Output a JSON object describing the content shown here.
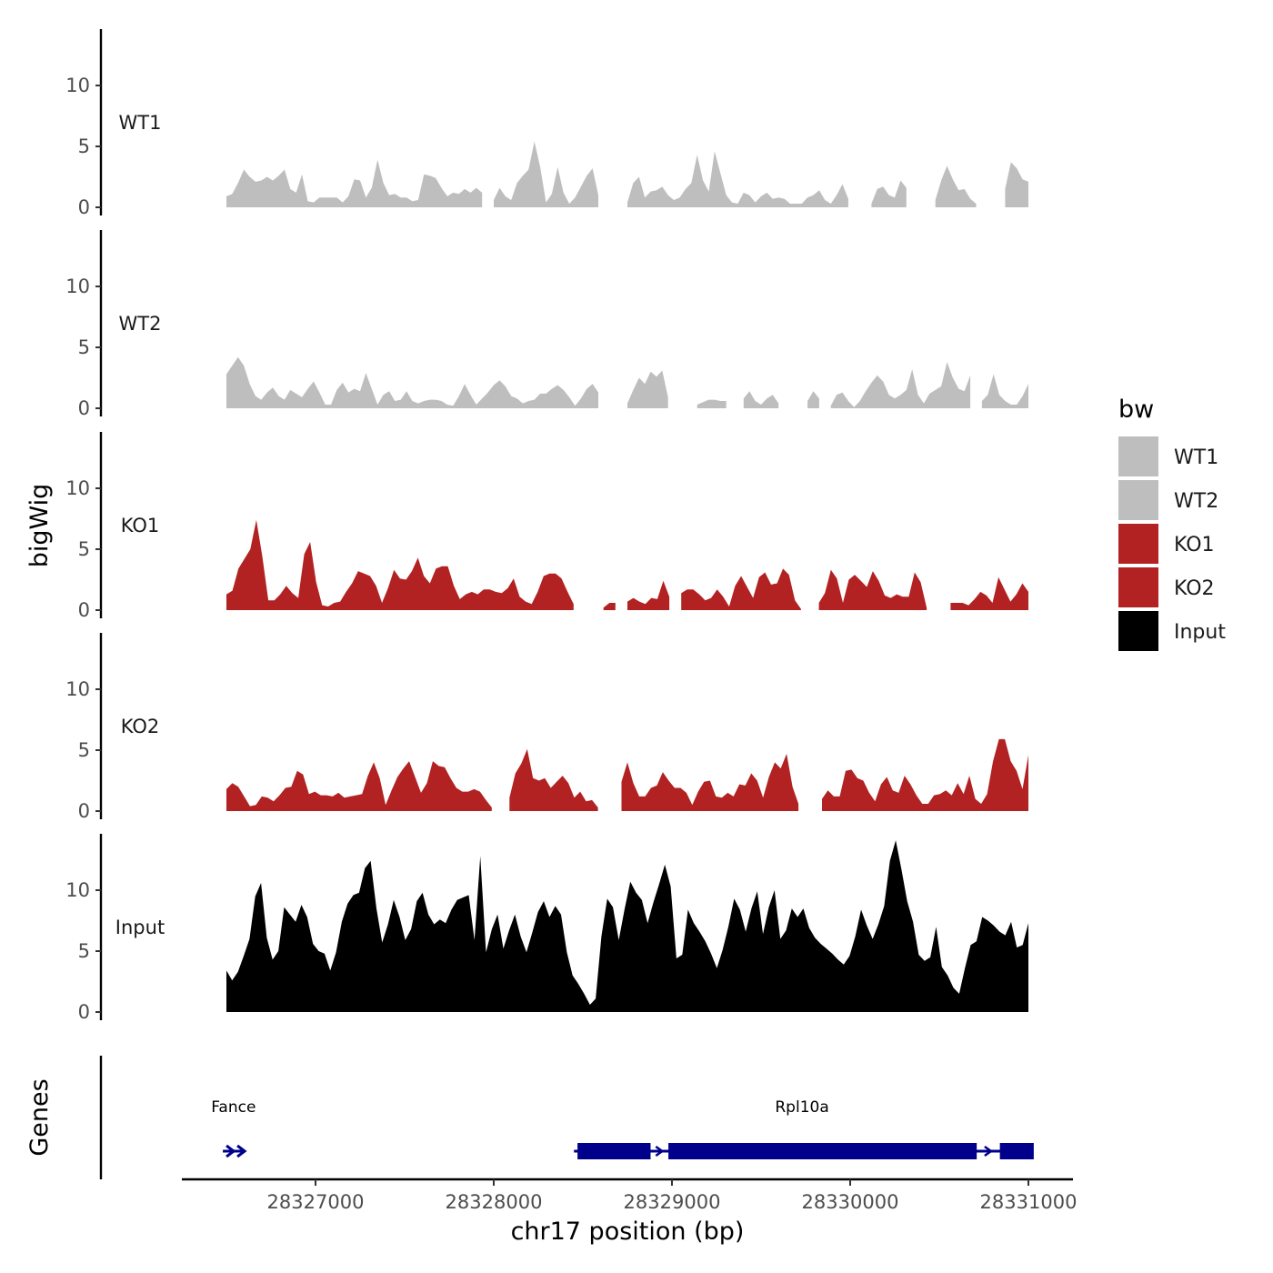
{
  "chart_data": {
    "type": "area",
    "y_axis_title": "bigWig",
    "x_axis_title": "chr17 position (bp)",
    "genes_axis_title": "Genes",
    "chromosome": "chr17",
    "xlim": [
      26250,
      31250
    ],
    "x_ticks": [
      {
        "value": 27000,
        "label": "28327000"
      },
      {
        "value": 28000,
        "label": "28328000"
      },
      {
        "value": 29000,
        "label": "28329000"
      },
      {
        "value": 30000,
        "label": "28330000"
      },
      {
        "value": 31000,
        "label": "28331000"
      }
    ],
    "x_offset": 28300000,
    "ylim": [
      0,
      15
    ],
    "y_ticks": [
      0,
      5,
      10
    ],
    "data_range": [
      26500,
      31000
    ],
    "legend": {
      "title": "bw",
      "entries": [
        {
          "label": "WT1",
          "color": "#BEBEBE"
        },
        {
          "label": "WT2",
          "color": "#BEBEBE"
        },
        {
          "label": "KO1",
          "color": "#B22222"
        },
        {
          "label": "KO2",
          "color": "#B22222"
        },
        {
          "label": "Input",
          "color": "#000000"
        }
      ]
    },
    "tracks": [
      {
        "name": "WT1",
        "color": "#BEBEBE",
        "values": [
          0.9,
          1.1,
          2.0,
          3.1,
          2.5,
          2.1,
          2.2,
          2.5,
          2.2,
          2.6,
          3.1,
          1.5,
          1.2,
          2.7,
          0.5,
          0.4,
          0.8,
          0.8,
          0.8,
          0.8,
          0.4,
          0.9,
          2.3,
          2.2,
          0.8,
          1.6,
          3.9,
          2.0,
          1.0,
          1.1,
          0.8,
          0.8,
          0.5,
          0.6,
          2.7,
          2.6,
          2.4,
          1.6,
          0.9,
          1.2,
          1.1,
          1.5,
          1.2,
          1.6,
          1.2,
          0,
          0.6,
          1.6,
          0.9,
          0.6,
          2.0,
          2.6,
          3.1,
          5.4,
          3.3,
          0.4,
          1.1,
          3.3,
          1.2,
          0.3,
          0.8,
          1.7,
          2.6,
          3.2,
          1.0,
          0,
          0,
          0,
          0,
          0.4,
          2.0,
          2.5,
          0.8,
          1.3,
          1.4,
          1.7,
          1.0,
          0.6,
          0.8,
          1.5,
          2.0,
          4.3,
          2.2,
          1.3,
          4.6,
          2.8,
          1.0,
          0.4,
          0.3,
          1.2,
          1.0,
          0.4,
          0.9,
          1.2,
          0.7,
          0.8,
          0.7,
          0.3,
          0.3,
          0.3,
          0.8,
          1.0,
          1.4,
          0.6,
          0.3,
          1.0,
          1.9,
          0.7,
          0,
          0,
          0,
          0.3,
          1.5,
          1.7,
          1.0,
          0.8,
          2.2,
          1.6,
          0,
          0,
          0,
          0,
          0.6,
          2.2,
          3.4,
          2.3,
          1.4,
          1.5,
          0.7,
          0.3,
          0,
          0,
          0,
          0,
          1.5,
          3.7,
          3.2,
          2.3,
          2.1
        ]
      },
      {
        "name": "WT2",
        "color": "#BEBEBE",
        "values": [
          2.8,
          3.5,
          4.2,
          3.5,
          2.0,
          1.0,
          0.7,
          1.3,
          1.7,
          1.0,
          0.7,
          1.5,
          1.2,
          0.9,
          1.6,
          2.2,
          1.3,
          0.3,
          0.3,
          1.5,
          2.1,
          1.3,
          1.6,
          1.4,
          2.9,
          1.6,
          0.3,
          1.1,
          1.4,
          0.6,
          0.7,
          1.4,
          0.6,
          0.4,
          0.6,
          0.7,
          0.7,
          0.6,
          0.3,
          0.2,
          1.0,
          2.0,
          1.1,
          0.3,
          0.8,
          1.3,
          1.9,
          2.3,
          1.8,
          1.0,
          0.8,
          0.4,
          0.6,
          0.7,
          1.2,
          1.2,
          1.6,
          1.9,
          1.5,
          0.9,
          0.2,
          0.8,
          1.6,
          2.0,
          1.3,
          0,
          0,
          0,
          0,
          0.4,
          1.5,
          2.5,
          2.0,
          3.0,
          2.6,
          3.1,
          0.9,
          0,
          0,
          0,
          0,
          0.3,
          0.5,
          0.7,
          0.7,
          0.6,
          0.6,
          0,
          0,
          0.8,
          1.4,
          0.6,
          0.3,
          0.8,
          1.1,
          0.4,
          0,
          0,
          0,
          0,
          0.6,
          1.4,
          0.8,
          0,
          0.2,
          1.1,
          1.3,
          0.6,
          0.1,
          0.6,
          1.4,
          2.1,
          2.7,
          2.2,
          1.1,
          0.8,
          1.1,
          1.5,
          3.2,
          1.1,
          0.4,
          1.2,
          1.5,
          1.8,
          3.8,
          2.5,
          1.6,
          1.4,
          2.7,
          0,
          0.6,
          1.1,
          2.8,
          1.1,
          0.6,
          0.3,
          0.3,
          1.0,
          2.0
        ]
      },
      {
        "name": "KO1",
        "color": "#B22222",
        "values": [
          1.3,
          1.6,
          3.4,
          4.2,
          5.0,
          7.4,
          4.4,
          0.8,
          0.8,
          1.3,
          2.0,
          1.4,
          1.0,
          4.6,
          5.6,
          2.3,
          0.4,
          0.3,
          0.6,
          0.7,
          1.5,
          2.2,
          3.2,
          3.0,
          2.8,
          2.0,
          0.6,
          1.8,
          3.3,
          2.6,
          2.5,
          3.2,
          4.3,
          2.8,
          2.2,
          3.4,
          3.6,
          3.6,
          2.0,
          0.9,
          1.3,
          1.5,
          1.3,
          1.7,
          1.7,
          1.5,
          1.4,
          1.8,
          2.6,
          1.1,
          0.7,
          0.5,
          1.5,
          2.8,
          3.0,
          3.0,
          2.6,
          1.5,
          0.5,
          0,
          0,
          0,
          0,
          0.2,
          0.6,
          0.6,
          0,
          0.7,
          1.0,
          0.7,
          0.5,
          1.0,
          0.9,
          2.4,
          1.1,
          0,
          1.4,
          1.7,
          1.7,
          1.3,
          0.8,
          1.0,
          1.7,
          1.1,
          0.3,
          2.0,
          2.8,
          1.9,
          1.0,
          2.7,
          3.1,
          2.1,
          2.2,
          3.4,
          2.9,
          0.8,
          0.1,
          0,
          0,
          0.6,
          1.4,
          3.3,
          2.6,
          0.6,
          2.5,
          2.9,
          2.4,
          1.9,
          3.2,
          2.4,
          1.2,
          1.0,
          1.3,
          1.1,
          1.1,
          3.1,
          2.3,
          0.2,
          0,
          0,
          0,
          0.6,
          0.6,
          0.6,
          0.4,
          0.9,
          1.5,
          1.2,
          0.6,
          2.7,
          1.7,
          0.7,
          1.3,
          2.2,
          1.5
        ]
      },
      {
        "name": "KO2",
        "color": "#B22222",
        "values": [
          1.8,
          2.3,
          2.0,
          1.2,
          0.4,
          0.5,
          1.2,
          1.1,
          0.8,
          1.3,
          1.9,
          2.0,
          3.3,
          3.0,
          1.4,
          1.6,
          1.3,
          1.3,
          1.2,
          1.5,
          1.1,
          1.2,
          1.3,
          1.4,
          2.9,
          4.0,
          2.7,
          0.5,
          1.7,
          2.8,
          3.5,
          4.1,
          2.8,
          1.5,
          2.3,
          4.1,
          3.7,
          3.6,
          2.7,
          1.9,
          1.6,
          1.6,
          1.8,
          1.6,
          0.9,
          0.3,
          0,
          0,
          1.1,
          3.1,
          3.9,
          5.1,
          2.7,
          2.5,
          2.7,
          1.9,
          2.4,
          2.9,
          2.3,
          1.1,
          1.6,
          0.8,
          0.9,
          0.3,
          0,
          0,
          0,
          2.4,
          4.0,
          2.3,
          1.2,
          1.2,
          1.9,
          2.1,
          3.2,
          2.5,
          1.9,
          1.9,
          1.5,
          0.5,
          1.6,
          2.4,
          2.5,
          1.2,
          1.1,
          1.5,
          1.2,
          2.2,
          2.1,
          3.1,
          2.5,
          1.1,
          2.8,
          4.0,
          3.5,
          4.7,
          2.0,
          0.6,
          0,
          0,
          0,
          1.0,
          1.7,
          1.2,
          1.2,
          3.3,
          3.4,
          2.7,
          2.5,
          1.5,
          0.8,
          2.2,
          2.8,
          1.7,
          1.5,
          2.9,
          2.2,
          1.3,
          0.6,
          0.6,
          1.3,
          1.4,
          1.7,
          1.3,
          2.3,
          1.4,
          2.9,
          1.0,
          0.6,
          1.4,
          4.1,
          5.9,
          5.9,
          4.1,
          3.3,
          1.8,
          4.6
        ]
      },
      {
        "name": "Input",
        "color": "#000000",
        "values": [
          3.4,
          2.6,
          3.3,
          4.6,
          6.0,
          9.5,
          10.6,
          6.1,
          4.3,
          5.0,
          8.6,
          8.0,
          7.4,
          8.8,
          7.8,
          5.6,
          5.0,
          4.8,
          3.4,
          4.9,
          7.4,
          8.9,
          9.6,
          9.8,
          11.8,
          12.4,
          8.5,
          5.7,
          7.2,
          9.2,
          7.8,
          5.9,
          6.8,
          9.1,
          9.8,
          8.0,
          7.2,
          7.6,
          7.3,
          8.4,
          9.2,
          9.4,
          9.6,
          5.9,
          12.8,
          4.9,
          6.8,
          8.0,
          5.2,
          6.7,
          8.0,
          6.2,
          4.9,
          6.5,
          8.2,
          9.1,
          7.8,
          8.7,
          8.0,
          4.9,
          3.0,
          2.3,
          1.5,
          0.6,
          1.1,
          6.2,
          9.3,
          8.6,
          5.9,
          8.4,
          10.7,
          9.8,
          9.2,
          7.3,
          9.0,
          10.5,
          12.1,
          10.3,
          4.4,
          4.7,
          8.4,
          7.3,
          6.6,
          5.8,
          4.8,
          3.6,
          5.1,
          7.0,
          9.3,
          8.4,
          6.6,
          8.5,
          9.9,
          6.4,
          8.6,
          10.0,
          6.0,
          6.7,
          8.5,
          7.8,
          8.5,
          6.9,
          6.1,
          5.6,
          5.2,
          4.8,
          4.3,
          3.9,
          4.6,
          6.2,
          8.4,
          7.1,
          6.0,
          7.2,
          8.7,
          12.4,
          14.1,
          11.7,
          9.1,
          7.4,
          4.7,
          4.2,
          4.5,
          7.0,
          3.7,
          3.0,
          2.0,
          1.5,
          3.6,
          5.5,
          5.8,
          7.8,
          7.5,
          7.1,
          6.6,
          6.3,
          7.4,
          5.3,
          5.5,
          7.3
        ]
      }
    ],
    "genes": [
      {
        "name": "Rpl10a",
        "color": "#00008B",
        "strand": "+",
        "start": 28450,
        "end": 31010,
        "exons": [
          [
            28470,
            28880
          ],
          [
            28980,
            30710
          ],
          [
            30840,
            31030
          ]
        ]
      },
      {
        "name": "Fance",
        "color": "#00008B",
        "strand": "+",
        "start": 26480,
        "end": 26600,
        "exons": []
      }
    ]
  }
}
